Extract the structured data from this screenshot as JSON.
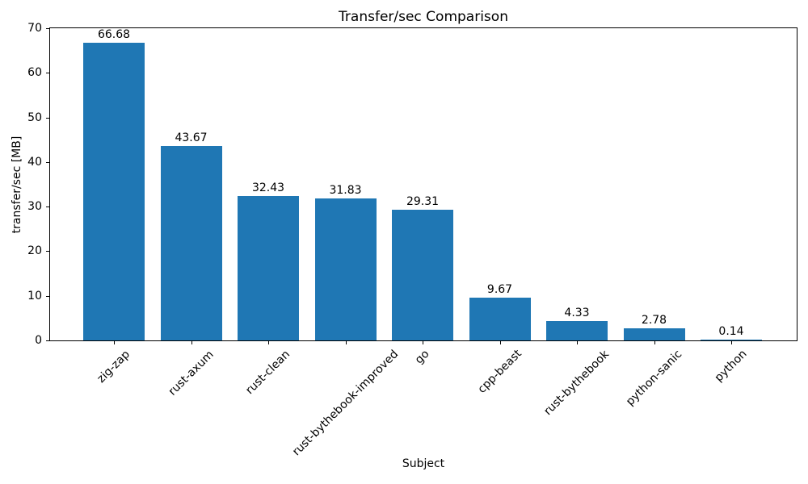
{
  "chart_data": {
    "type": "bar",
    "title": "Transfer/sec Comparison",
    "xlabel": "Subject",
    "ylabel": "transfer/sec [MB]",
    "categories": [
      "zig-zap",
      "rust-axum",
      "rust-clean",
      "rust-bythebook-improved",
      "go",
      "cpp-beast",
      "rust-bythebook",
      "python-sanic",
      "python"
    ],
    "values": [
      66.68,
      43.67,
      32.43,
      31.83,
      29.31,
      9.67,
      4.33,
      2.78,
      0.14
    ],
    "value_labels": [
      "66.68",
      "43.67",
      "32.43",
      "31.83",
      "29.31",
      "9.67",
      "4.33",
      "2.78",
      "0.14"
    ],
    "ylim": [
      0,
      70
    ],
    "yticks": [
      0,
      10,
      20,
      30,
      40,
      50,
      60,
      70
    ],
    "x_tick_rotation_deg": 45,
    "bar_color": "#1f77b4",
    "bar_width_fraction": 0.8,
    "grid": false,
    "legend_visible": false,
    "background_color": "#ffffff",
    "axis_color": "#000000"
  }
}
